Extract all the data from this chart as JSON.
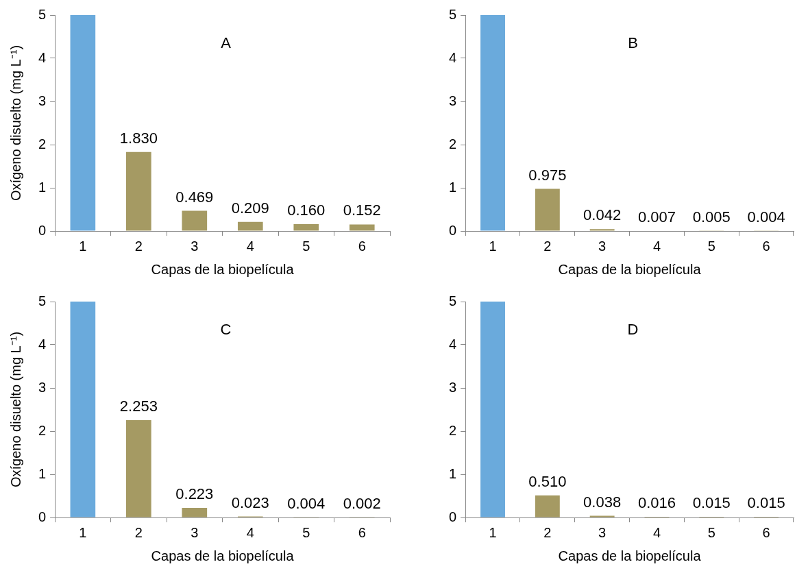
{
  "chart_data": [
    {
      "type": "bar",
      "title": "A",
      "xlabel": "Capas de la biopelícula",
      "ylabel": "Oxígeno disuelto (mg L⁻¹)",
      "categories": [
        "1",
        "2",
        "3",
        "4",
        "5",
        "6"
      ],
      "values": [
        5,
        1.83,
        0.469,
        0.209,
        0.16,
        0.152
      ],
      "colors": [
        "#6aaadc",
        "#a59a63",
        "#a59a63",
        "#a59a63",
        "#a59a63",
        "#a59a63"
      ],
      "value_labels": [
        null,
        "1.830",
        "0.469",
        "0.209",
        "0.160",
        "0.152"
      ],
      "ylim": [
        0,
        5
      ],
      "yticks": [
        0,
        1,
        2,
        3,
        4,
        5
      ],
      "grid": false,
      "legend": false
    },
    {
      "type": "bar",
      "title": "B",
      "xlabel": "Capas de la biopelícula",
      "categories": [
        "1",
        "2",
        "3",
        "4",
        "5",
        "6"
      ],
      "values": [
        5,
        0.975,
        0.042,
        0.007,
        0.005,
        0.004
      ],
      "colors": [
        "#6aaadc",
        "#a59a63",
        "#a59a63",
        "#a59a63",
        "#a59a63",
        "#a59a63"
      ],
      "value_labels": [
        null,
        "0.975",
        "0.042",
        "0.007",
        "0.005",
        "0.004"
      ],
      "ylim": [
        0,
        5
      ],
      "yticks": [
        0,
        1,
        2,
        3,
        4,
        5
      ],
      "grid": false,
      "legend": false
    },
    {
      "type": "bar",
      "title": "C",
      "xlabel": "Capas de la biopelícula",
      "ylabel": "Oxígeno disuelto (mg L⁻¹)",
      "categories": [
        "1",
        "2",
        "3",
        "4",
        "5",
        "6"
      ],
      "values": [
        5,
        2.253,
        0.223,
        0.023,
        0.004,
        0.002
      ],
      "colors": [
        "#6aaadc",
        "#a59a63",
        "#a59a63",
        "#a59a63",
        "#a59a63",
        "#a59a63"
      ],
      "value_labels": [
        null,
        "2.253",
        "0.223",
        "0.023",
        "0.004",
        "0.002"
      ],
      "ylim": [
        0,
        5
      ],
      "yticks": [
        0,
        1,
        2,
        3,
        4,
        5
      ],
      "grid": false,
      "legend": false
    },
    {
      "type": "bar",
      "title": "D",
      "xlabel": "Capas de la biopelícula",
      "categories": [
        "1",
        "2",
        "3",
        "4",
        "5",
        "6"
      ],
      "values": [
        5,
        0.51,
        0.038,
        0.016,
        0.015,
        0.015
      ],
      "colors": [
        "#6aaadc",
        "#a59a63",
        "#a59a63",
        "#a59a63",
        "#a59a63",
        "#a59a63"
      ],
      "value_labels": [
        null,
        "0.510",
        "0.038",
        "0.016",
        "0.015",
        "0.015"
      ],
      "ylim": [
        0,
        5
      ],
      "yticks": [
        0,
        1,
        2,
        3,
        4,
        5
      ],
      "grid": false,
      "legend": false
    }
  ]
}
